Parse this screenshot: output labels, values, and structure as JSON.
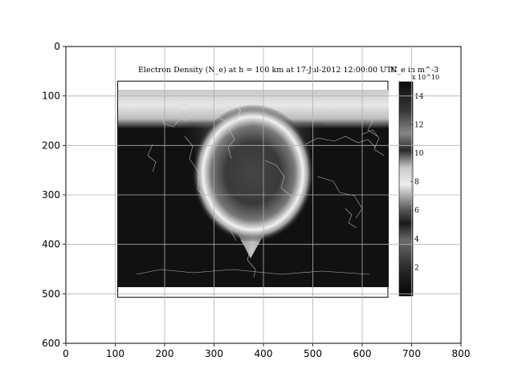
{
  "chart_data": {
    "type": "heatmap",
    "title": "",
    "xlabel": "",
    "ylabel": "",
    "xlim": [
      0,
      800
    ],
    "ylim": [
      600,
      0
    ],
    "x_ticks": [
      0,
      100,
      200,
      300,
      400,
      500,
      600,
      700,
      800
    ],
    "y_ticks": [
      0,
      100,
      200,
      300,
      400,
      500,
      600
    ],
    "grid": true,
    "embedded_image": {
      "extent": {
        "x": [
          105,
          652
        ],
        "y": [
          70,
          507
        ]
      },
      "title": "Electron Density (N_e) at h = 100 km at 17-Jul-2012 12:00:00 UTC",
      "colorbar_label": "N_e in m^-3",
      "colorbar_exponent": "x 10^10",
      "colorbar_ticks": [
        2,
        4,
        6,
        8,
        10,
        12,
        14
      ],
      "colorbar_range": [
        0,
        15
      ],
      "colormap": "grayscale-cyclic"
    }
  }
}
